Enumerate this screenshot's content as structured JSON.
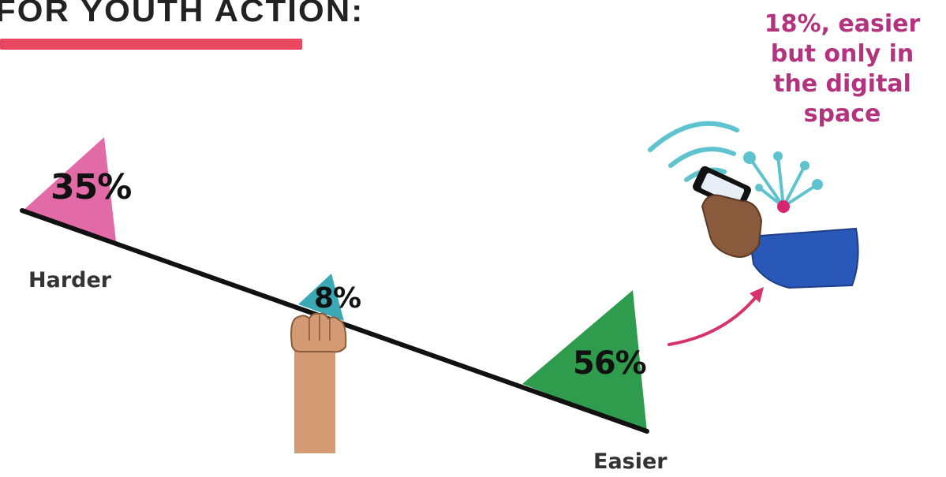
{
  "header": {
    "title": "FOR YOUTH ACTION:"
  },
  "scale": {
    "harder": {
      "label": "Harder",
      "percent": "35%",
      "color": "#e16aa7"
    },
    "neutral": {
      "percent": "8%",
      "color": "#3aa9b5"
    },
    "easier": {
      "label": "Easier",
      "percent": "56%",
      "color": "#2f9c4d"
    }
  },
  "annotation": {
    "text": "18%, easier but only in the digital space",
    "color": "#b3337e"
  },
  "icons": {
    "fist": "raised-fist-icon",
    "phone": "phone-in-hand-icon",
    "arrow": "curved-arrow-icon",
    "signal": "wifi-signal-icon",
    "network": "network-nodes-icon"
  }
}
